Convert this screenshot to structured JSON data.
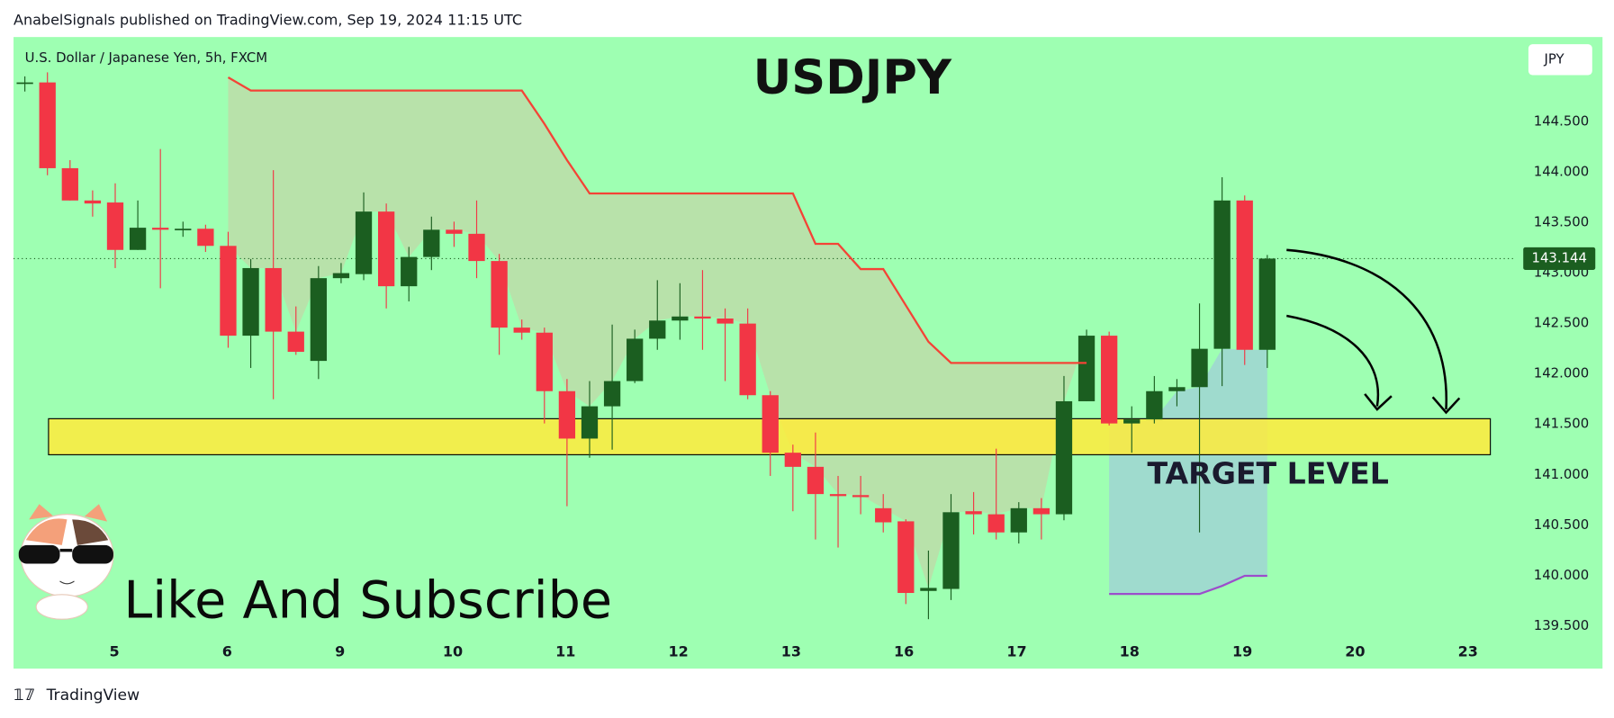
{
  "chart_data": {
    "type": "candlestick",
    "header": "AnabelSignals published on TradingView.com, Sep 19, 2024 11:15 UTC",
    "title": "USDJPY",
    "symbol": "U.S. Dollar / Japanese Yen, 5h, FXCM",
    "currency": "JPY",
    "footer": "TradingView",
    "annotations": [
      "TARGET LEVEL",
      "Like And Subscribe"
    ],
    "open": [
      144.88,
      144.89,
      144.04,
      143.72,
      143.7,
      143.23,
      143.45,
      143.43,
      143.44,
      143.27,
      142.38,
      143.05,
      142.42,
      142.13,
      142.95,
      142.99,
      143.61,
      142.87,
      143.16,
      143.43,
      143.39,
      143.12,
      142.46,
      142.41,
      141.83,
      141.36,
      141.68,
      141.93,
      142.35,
      142.53,
      142.57,
      142.55,
      142.5,
      141.79,
      141.22,
      141.08,
      140.81,
      140.8,
      140.67,
      140.54,
      139.85,
      139.87,
      140.64,
      140.61,
      140.43,
      140.67,
      140.61,
      141.73,
      142.38,
      141.51,
      141.55,
      141.83,
      141.87,
      142.25,
      143.72,
      142.24
    ],
    "high": [
      144.95,
      144.99,
      144.12,
      143.82,
      143.89,
      143.72,
      144.23,
      143.51,
      143.48,
      143.41,
      143.14,
      144.02,
      142.67,
      143.07,
      143.1,
      143.8,
      143.69,
      143.26,
      143.56,
      143.51,
      143.72,
      143.19,
      142.54,
      142.46,
      141.95,
      141.93,
      142.49,
      142.44,
      142.93,
      142.9,
      143.03,
      142.65,
      142.65,
      141.83,
      141.3,
      141.42,
      140.99,
      140.99,
      140.81,
      140.56,
      140.25,
      140.81,
      140.83,
      141.26,
      140.73,
      140.77,
      141.98,
      142.44,
      142.42,
      141.68,
      141.98,
      141.95,
      142.7,
      143.95,
      143.77,
      143.18
    ],
    "low": [
      144.8,
      143.97,
      143.72,
      143.56,
      143.05,
      143.23,
      142.85,
      143.36,
      143.21,
      142.26,
      142.06,
      141.75,
      142.19,
      141.95,
      142.9,
      142.93,
      142.65,
      142.72,
      143.03,
      143.26,
      142.95,
      142.19,
      142.34,
      141.51,
      140.69,
      141.17,
      141.25,
      141.91,
      142.24,
      142.34,
      142.24,
      141.93,
      141.75,
      140.99,
      140.64,
      140.36,
      140.28,
      140.61,
      140.43,
      139.72,
      139.57,
      139.76,
      140.41,
      140.36,
      140.32,
      140.36,
      140.55,
      141.73,
      141.49,
      141.22,
      141.51,
      141.68,
      140.43,
      141.88,
      142.09,
      142.06
    ],
    "close": [
      144.89,
      144.04,
      143.72,
      143.69,
      143.23,
      143.45,
      143.43,
      143.44,
      143.27,
      142.38,
      143.05,
      142.42,
      142.22,
      142.95,
      143.0,
      143.61,
      142.87,
      143.16,
      143.43,
      143.39,
      143.12,
      142.46,
      142.41,
      141.83,
      141.36,
      141.68,
      141.93,
      142.35,
      142.53,
      142.57,
      142.55,
      142.5,
      141.79,
      141.22,
      141.08,
      140.81,
      140.79,
      140.78,
      140.53,
      139.83,
      139.88,
      140.63,
      140.61,
      140.43,
      140.67,
      140.61,
      141.73,
      142.38,
      141.51,
      141.55,
      141.83,
      141.87,
      142.25,
      143.72,
      142.24,
      143.144
    ],
    "up_color": "#1b5e20",
    "down_color": "#f23645",
    "resistance": {
      "color": "#f44336",
      "values": [
        null,
        null,
        null,
        null,
        null,
        null,
        null,
        null,
        null,
        144.94,
        144.81,
        144.81,
        144.81,
        144.81,
        144.81,
        144.81,
        144.81,
        144.81,
        144.81,
        144.81,
        144.81,
        144.81,
        144.81,
        144.48,
        144.12,
        143.79,
        143.79,
        143.79,
        143.79,
        143.79,
        143.79,
        143.79,
        143.79,
        143.79,
        143.79,
        143.29,
        143.29,
        143.04,
        143.04,
        142.68,
        142.32,
        142.11,
        142.11,
        142.11,
        142.11,
        142.11,
        142.11,
        142.11,
        null,
        null,
        null,
        null,
        null,
        null,
        null,
        null
      ]
    },
    "support": {
      "color": "#9c4dcc",
      "values": [
        null,
        null,
        null,
        null,
        null,
        null,
        null,
        null,
        null,
        null,
        null,
        null,
        null,
        null,
        null,
        null,
        null,
        null,
        null,
        null,
        null,
        null,
        null,
        null,
        null,
        null,
        null,
        null,
        null,
        null,
        null,
        null,
        null,
        null,
        null,
        null,
        null,
        null,
        null,
        null,
        null,
        null,
        null,
        null,
        null,
        null,
        null,
        null,
        139.82,
        139.82,
        139.82,
        139.82,
        139.82,
        139.9,
        140.0,
        140.0
      ]
    },
    "zone": {
      "color": "#ffeb3b",
      "values": [
        141.2,
        141.557
      ]
    },
    "last_price": 143.144,
    "ylim": [
      139.08,
      145.34
    ],
    "yticks": [
      {
        "value": 139.5,
        "label": "139.500"
      },
      {
        "value": 140,
        "label": "140.000"
      },
      {
        "value": 140.5,
        "label": "140.500"
      },
      {
        "value": 141,
        "label": "141.000"
      },
      {
        "value": 141.5,
        "label": "141.500"
      },
      {
        "value": 142,
        "label": "142.000"
      },
      {
        "value": 142.5,
        "label": "142.500"
      },
      {
        "value": 143,
        "label": "143.000"
      },
      {
        "value": 143.5,
        "label": "143.500"
      },
      {
        "value": 144,
        "label": "144.000"
      },
      {
        "value": 144.5,
        "label": "144.500"
      }
    ],
    "xtick_labels": [
      "5",
      "6",
      "9",
      "10",
      "11",
      "12",
      "13",
      "16",
      "17",
      "18",
      "19",
      "20",
      "23"
    ],
    "background": "#9effb2"
  }
}
